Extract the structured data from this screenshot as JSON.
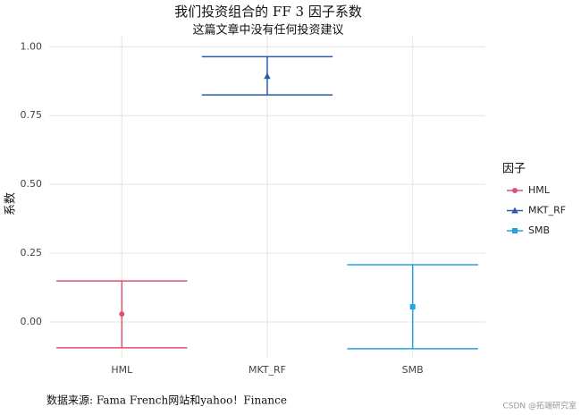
{
  "chart_data": {
    "type": "errorbar",
    "title": "我们投资组合的 FF 3 因子系数",
    "subtitle": "这篇文章中没有任何投资建议",
    "y_label": "系数",
    "caption": "数据来源: Fama French网站和yahoo！Finance",
    "watermark": "CSDN @拓端研究室",
    "legend_title": "因子",
    "legend_position": "right",
    "categories": [
      "HML",
      "MKT_RF",
      "SMB"
    ],
    "values": [
      0.029,
      0.893,
      0.055
    ],
    "ymin": [
      -0.094,
      0.825,
      -0.097
    ],
    "ymax": [
      0.149,
      0.964,
      0.208
    ],
    "colors": [
      "#e0506f",
      "#2a5caa",
      "#23a3dd"
    ],
    "markers": [
      "circle",
      "triangle",
      "square"
    ],
    "ylim": [
      -0.13,
      1.04
    ],
    "yticks": [
      {
        "value": 0,
        "label": "0.00"
      },
      {
        "value": 0.25,
        "label": "0.25"
      },
      {
        "value": 0.5,
        "label": "0.50"
      },
      {
        "value": 0.75,
        "label": "0.75"
      },
      {
        "value": 1,
        "label": "1.00"
      }
    ],
    "grid": true
  }
}
